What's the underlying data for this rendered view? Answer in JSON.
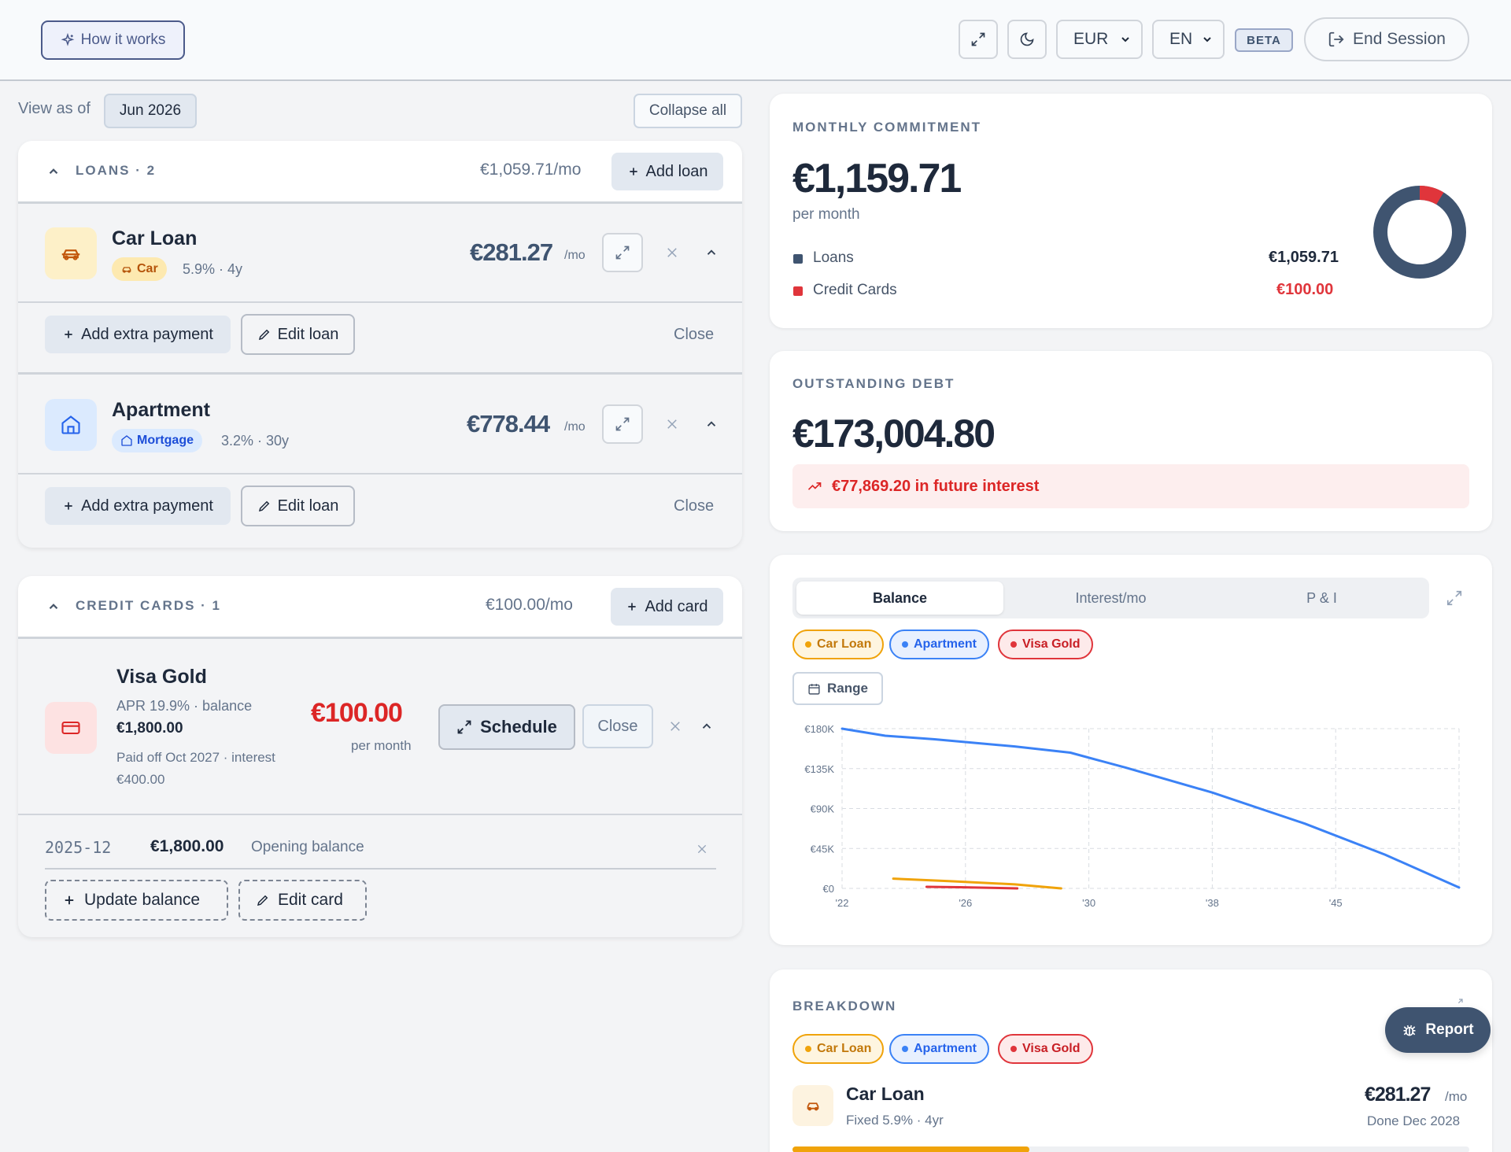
{
  "topbar": {
    "how_it_works": "How it works",
    "currency": "EUR",
    "language": "EN",
    "beta": "BETA",
    "end_session": "End Session"
  },
  "view": {
    "label": "View as of",
    "date": "Jun 2026",
    "collapse_all": "Collapse all"
  },
  "loans": {
    "title": "LOANS · 2",
    "monthly": "€1,059.71/mo",
    "add_label": "Add loan",
    "items": [
      {
        "name": "Car Loan",
        "tag": "Car",
        "meta": "5.9% · 4y",
        "amount": "€281.27",
        "unit": "/mo",
        "add_extra": "Add extra payment",
        "edit": "Edit loan",
        "close": "Close",
        "icon": "car-icon"
      },
      {
        "name": "Apartment",
        "tag": "Mortgage",
        "meta": "3.2% · 30y",
        "amount": "€778.44",
        "unit": "/mo",
        "add_extra": "Add extra payment",
        "edit": "Edit loan",
        "close": "Close",
        "icon": "home-icon"
      }
    ]
  },
  "cards": {
    "title": "CREDIT CARDS · 1",
    "monthly": "€100.00/mo",
    "add_label": "Add card",
    "item": {
      "name": "Visa Gold",
      "apr": "APR 19.9% · balance",
      "balance": "€1,800.00",
      "paid_off": "Paid off Oct 2027 · interest",
      "interest": "€400.00",
      "amount": "€100.00",
      "per_month": "per month",
      "schedule": "Schedule",
      "close": "Close",
      "icon": "credit-card-icon"
    },
    "history": {
      "date": "2025-12",
      "amount": "€1,800.00",
      "note": "Opening balance"
    },
    "update_balance": "Update balance",
    "edit_card": "Edit card"
  },
  "monthly_commitment": {
    "title": "MONTHLY COMMITMENT",
    "amount": "€1,159.71",
    "subtitle": "per month",
    "legend": [
      {
        "label": "Loans",
        "value": "€1,059.71",
        "color": "#3f5470"
      },
      {
        "label": "Credit Cards",
        "value": "€100.00",
        "color": "#e0353b"
      }
    ]
  },
  "outstanding": {
    "title": "OUTSTANDING DEBT",
    "amount": "€173,004.80",
    "interest_note": "€77,869.20 in future interest"
  },
  "chart_panel": {
    "tabs": [
      "Balance",
      "Interest/mo",
      "P & I"
    ],
    "active_tab": "Balance",
    "range_label": "Range",
    "filters": [
      {
        "label": "Car Loan",
        "color": "#f0a30a"
      },
      {
        "label": "Apartment",
        "color": "#3b82f6"
      },
      {
        "label": "Visa Gold",
        "color": "#e0353b"
      }
    ]
  },
  "chart_data": {
    "type": "line",
    "y_ticks": [
      "€180K",
      "€135K",
      "€90K",
      "€45K",
      "€0"
    ],
    "x_ticks": [
      "'22",
      "'26",
      "'30",
      "'38",
      "'45"
    ],
    "ylim": [
      0,
      180000
    ],
    "grid": true,
    "series": [
      {
        "name": "Apartment",
        "color": "#3b82f6",
        "points": [
          [
            0,
            180000
          ],
          [
            0.07,
            172000
          ],
          [
            0.15,
            168000
          ],
          [
            0.28,
            160000
          ],
          [
            0.37,
            153000
          ],
          [
            0.46,
            136000
          ],
          [
            0.6,
            108000
          ],
          [
            0.75,
            73000
          ],
          [
            0.88,
            38000
          ],
          [
            1.0,
            1000
          ]
        ]
      },
      {
        "name": "Car Loan",
        "color": "#f0a30a",
        "points": [
          [
            0.083,
            11000
          ],
          [
            0.18,
            8000
          ],
          [
            0.28,
            4500
          ],
          [
            0.355,
            0
          ]
        ]
      },
      {
        "name": "Visa Gold",
        "color": "#e0353b",
        "points": [
          [
            0.137,
            1800
          ],
          [
            0.19,
            1300
          ],
          [
            0.284,
            0
          ]
        ]
      }
    ]
  },
  "breakdown": {
    "title": "BREAKDOWN",
    "filters": [
      "Car Loan",
      "Apartment",
      "Visa Gold"
    ],
    "item": {
      "name": "Car Loan",
      "meta": "Fixed 5.9% · 4yr",
      "amount": "€281.27",
      "unit": "/mo",
      "done": "Done Dec 2028",
      "progress": 0.35
    }
  },
  "report": {
    "label": "Report"
  }
}
